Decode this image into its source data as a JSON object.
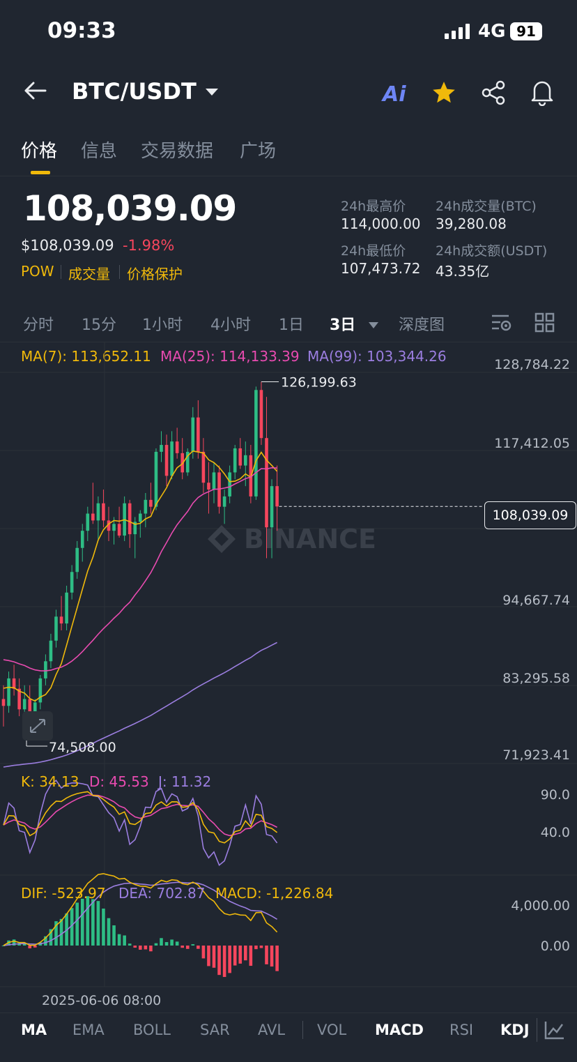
{
  "status_bar": {
    "time": "09:33",
    "network": "4G",
    "battery": "91"
  },
  "header": {
    "pair": "BTC/USDT",
    "ai_label": "Ai"
  },
  "tabs": [
    "价格",
    "信息",
    "交易数据",
    "广场"
  ],
  "price": {
    "last": "108,039.09",
    "usd": "$108,039.09",
    "change": "-1.98%"
  },
  "tags": [
    "POW",
    "成交量",
    "价格保护"
  ],
  "stats": {
    "high_label": "24h最高价",
    "high": "114,000.00",
    "vol_btc_label": "24h成交量(BTC)",
    "vol_btc": "39,280.08",
    "low_label": "24h最低价",
    "low": "107,473.72",
    "vol_usdt_label": "24h成交额(USDT)",
    "vol_usdt": "43.35亿"
  },
  "intervals": [
    "分时",
    "15分",
    "1小时",
    "4小时",
    "1日",
    "3日",
    "深度图"
  ],
  "active_interval": "3日",
  "ma": {
    "ma7": "MA(7): 113,652.11",
    "ma25": "MA(25): 114,133.39",
    "ma99": "MA(99): 103,344.26"
  },
  "price_axis": [
    "128,784.22",
    "117,412.05",
    "108,039.09",
    "94,667.74",
    "83,295.58",
    "71,923.41"
  ],
  "chart_labels": {
    "high": "126,199.63",
    "low": "74,508.00",
    "watermark": "BINANCE",
    "date": "2025-06-06 08:00"
  },
  "kdj": {
    "k": "K: 34.13",
    "d": "D: 45.53",
    "j": "J: 11.32",
    "axis_top": "90.0",
    "axis_mid": "40.0"
  },
  "macd": {
    "dif": "DIF: -523.97",
    "dea": "DEA: 702.87",
    "macd": "MACD: -1,226.84",
    "axis_top": "4,000.00",
    "axis_zero": "0.00"
  },
  "indicators": [
    "MA",
    "EMA",
    "BOLL",
    "SAR",
    "AVL",
    "VOL",
    "MACD",
    "RSI",
    "KDJ"
  ],
  "active_indicators": [
    "MA",
    "MACD",
    "KDJ"
  ],
  "colors": {
    "up": "#2ebd85",
    "down": "#f6465d",
    "accent": "#f0b90b",
    "ma7": "#f0b90b",
    "ma25": "#e84bb0",
    "ma99": "#9b7ee0"
  },
  "chart_data": {
    "type": "candlestick",
    "ylim": [
      71923.41,
      128784.22
    ],
    "candles": [
      [
        80000,
        82000,
        76000,
        79000
      ],
      [
        79000,
        84000,
        78000,
        83000
      ],
      [
        83000,
        85000,
        80500,
        81500
      ],
      [
        81500,
        83000,
        77500,
        78500
      ],
      [
        78500,
        82000,
        76500,
        80000
      ],
      [
        80000,
        82000,
        75500,
        76500
      ],
      [
        76500,
        80000,
        74508,
        79500
      ],
      [
        79500,
        83500,
        78500,
        83000
      ],
      [
        83000,
        86500,
        82000,
        85500
      ],
      [
        85500,
        89500,
        84500,
        88500
      ],
      [
        88500,
        93000,
        87500,
        92000
      ],
      [
        92000,
        95000,
        90000,
        91000
      ],
      [
        91000,
        96500,
        90000,
        95500
      ],
      [
        95500,
        99500,
        94500,
        98500
      ],
      [
        98500,
        103000,
        97500,
        102000
      ],
      [
        102000,
        105500,
        100000,
        104500
      ],
      [
        104500,
        108000,
        103000,
        107000
      ],
      [
        107000,
        111500,
        105500,
        106000
      ],
      [
        106000,
        109500,
        103000,
        108500
      ],
      [
        108500,
        110500,
        105000,
        106000
      ],
      [
        106000,
        108000,
        103000,
        104500
      ],
      [
        104500,
        106500,
        102500,
        105500
      ],
      [
        105500,
        108000,
        103500,
        103800
      ],
      [
        103800,
        109500,
        103000,
        108500
      ],
      [
        108500,
        109000,
        102000,
        104000
      ],
      [
        104000,
        106500,
        100500,
        105800
      ],
      [
        105800,
        107500,
        103500,
        107000
      ],
      [
        107000,
        110000,
        105000,
        109000
      ],
      [
        109000,
        111500,
        107000,
        108000
      ],
      [
        108000,
        116500,
        107500,
        116000
      ],
      [
        116000,
        119000,
        114500,
        117000
      ],
      [
        117000,
        118500,
        111000,
        112500
      ],
      [
        112500,
        119000,
        112000,
        117500
      ],
      [
        117500,
        119500,
        115000,
        115800
      ],
      [
        115800,
        118000,
        112000,
        113000
      ],
      [
        113000,
        116500,
        112500,
        116000
      ],
      [
        116000,
        122500,
        115000,
        121000
      ],
      [
        121000,
        123500,
        115000,
        116000
      ],
      [
        116000,
        118000,
        110000,
        111500
      ],
      [
        111500,
        114500,
        107000,
        110500
      ],
      [
        110500,
        114500,
        108500,
        113000
      ],
      [
        113000,
        114000,
        107000,
        108000
      ],
      [
        108000,
        110500,
        105500,
        109500
      ],
      [
        109500,
        114000,
        108500,
        113000
      ],
      [
        113000,
        117000,
        112000,
        116500
      ],
      [
        116500,
        118000,
        113500,
        114000
      ],
      [
        114000,
        117500,
        111000,
        115500
      ],
      [
        115500,
        117000,
        108500,
        109500
      ],
      [
        109500,
        125500,
        109000,
        125000
      ],
      [
        125000,
        126199.63,
        117000,
        118000
      ],
      [
        118000,
        124000,
        100500,
        105000
      ],
      [
        105000,
        112000,
        100500,
        111000
      ],
      [
        111000,
        114000,
        104500,
        108039.09
      ]
    ]
  }
}
